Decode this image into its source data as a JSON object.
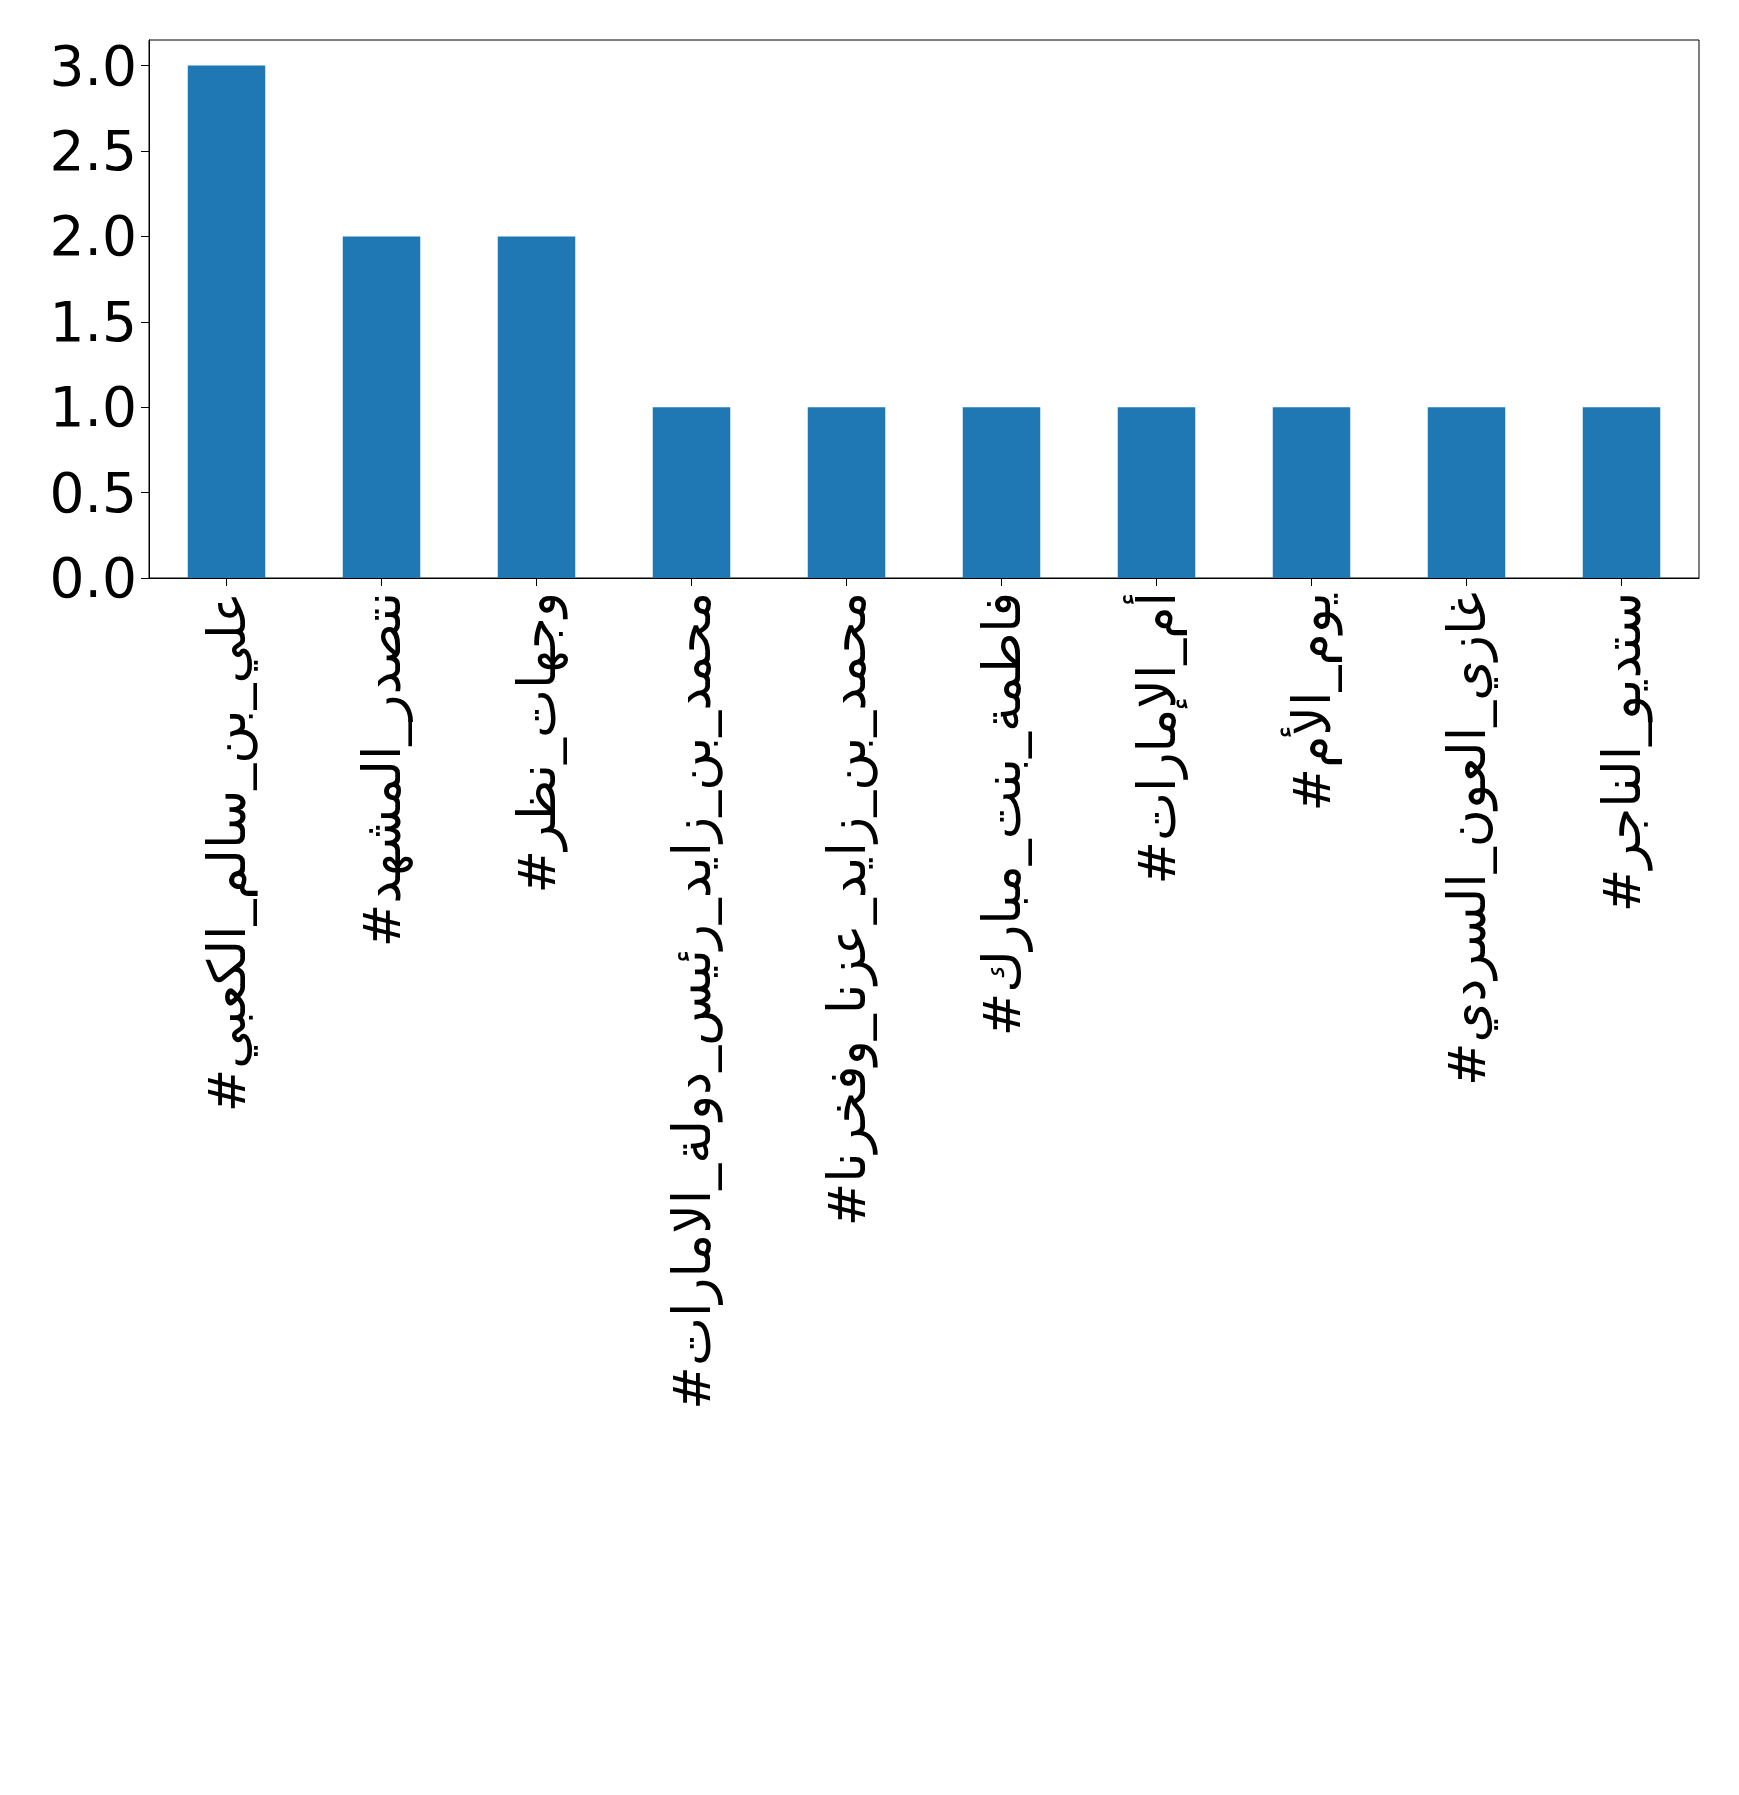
{
  "chart_data": {
    "type": "bar",
    "categories": [
      "#علي_بن_سالم_الكعبي",
      "#نتصدر_المشهد",
      "#وجهات_نظر",
      "#محمد_بن_زايد_رئيس_دولة_الامارات",
      "#محمد_بن_زايد_عزنا_وفخرنا",
      "#فاطمة_بنت_مبارك",
      "#أم_الإمارات",
      "#يوم_الأم",
      "#غازي_العون_السردي",
      "#ستديو_الناجر"
    ],
    "values": [
      3,
      2,
      2,
      1,
      1,
      1,
      1,
      1,
      1,
      1
    ],
    "color": "#1f77b4",
    "ylim": [
      0,
      3.15
    ],
    "yticks": [
      {
        "value": 0,
        "label": "0.0"
      },
      {
        "value": 0.5,
        "label": "0.5"
      },
      {
        "value": 1,
        "label": "1.0"
      },
      {
        "value": 1.5,
        "label": "1.5"
      },
      {
        "value": 2,
        "label": "2.0"
      },
      {
        "value": 2.5,
        "label": "2.5"
      },
      {
        "value": 3,
        "label": "3.0"
      }
    ],
    "grid": false
  }
}
